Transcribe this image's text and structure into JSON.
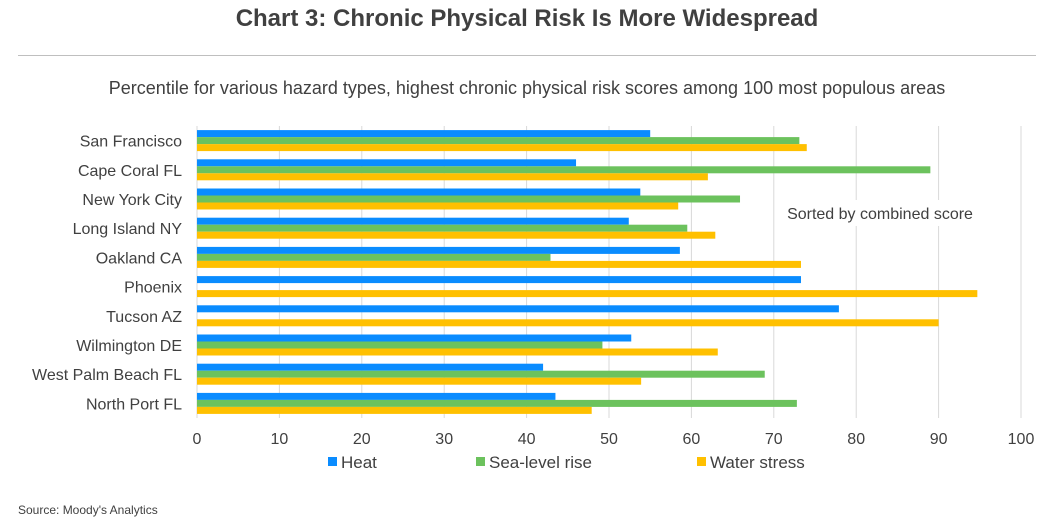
{
  "title": "Chart 3: Chronic Physical Risk Is More Widespread",
  "source": "Source: Moody's Analytics",
  "chart_data": {
    "type": "bar",
    "orientation": "horizontal",
    "title": "Chart 3: Chronic Physical Risk Is More Widespread",
    "subtitle": "Percentile for various hazard types, highest chronic physical risk scores among 100 most populous areas",
    "annotation": "Sorted by combined score",
    "categories": [
      "San Francisco",
      "Cape Coral FL",
      "New York City",
      "Long Island NY",
      "Oakland CA",
      "Phoenix",
      "Tucson AZ",
      "Wilmington DE",
      "West Palm Beach FL",
      "North Port FL"
    ],
    "series": [
      {
        "name": "Heat",
        "color": "#0a8cff",
        "values": [
          55.0,
          46.0,
          53.8,
          52.4,
          58.6,
          73.3,
          77.9,
          52.7,
          42.0,
          43.5
        ]
      },
      {
        "name": "Sea-level rise",
        "color": "#6cc25d",
        "values": [
          73.1,
          89.0,
          65.9,
          59.5,
          42.9,
          null,
          null,
          49.2,
          68.9,
          72.8
        ]
      },
      {
        "name": "Water stress",
        "color": "#ffc000",
        "values": [
          74.0,
          62.0,
          58.4,
          62.9,
          73.3,
          94.7,
          90.0,
          63.2,
          53.9,
          47.9
        ]
      }
    ],
    "xlim": [
      0,
      100
    ],
    "xticks": [
      "0",
      "10",
      "20",
      "30",
      "40",
      "50",
      "60",
      "70",
      "80",
      "90",
      "100"
    ],
    "grid": true,
    "legend_position": "bottom"
  }
}
